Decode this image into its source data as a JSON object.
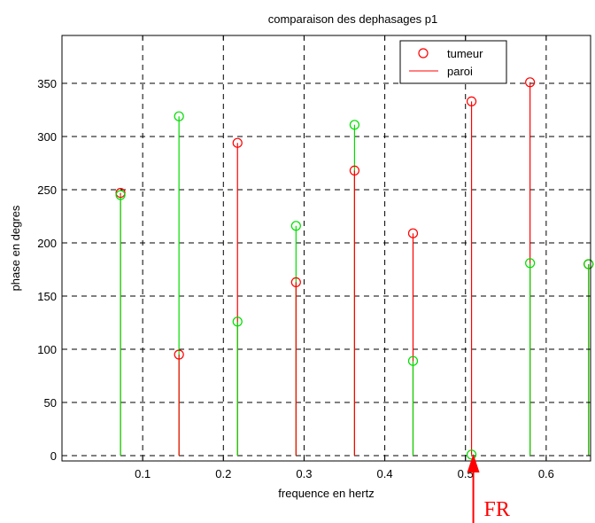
{
  "chart_data": {
    "type": "stem",
    "title": "comparaison des dephasages p1",
    "xlabel": "frequence en hertz",
    "ylabel": "phase en degres",
    "xlim": [
      0.0,
      0.655
    ],
    "ylim": [
      -5,
      395
    ],
    "xticks": [
      0.1,
      0.2,
      0.3,
      0.4,
      0.5,
      0.6
    ],
    "xtick_labels": [
      "0.1",
      "0.2",
      "0.3",
      "0.4",
      "0.5",
      "0.6"
    ],
    "yticks": [
      0,
      50,
      100,
      150,
      200,
      250,
      300,
      350
    ],
    "ytick_labels": [
      "0",
      "50",
      "100",
      "150",
      "200",
      "250",
      "300",
      "350"
    ],
    "grid": true,
    "legend_position": "top-right",
    "legend": [
      {
        "label": "tumeur",
        "marker": "circle",
        "color": "#ff0000"
      },
      {
        "label": "paroi",
        "marker": "line",
        "color": "#ff0000"
      }
    ],
    "series": [
      {
        "name": "tumeur",
        "color": "#ff0000",
        "x": [
          0.0725,
          0.145,
          0.2175,
          0.29,
          0.3625,
          0.435,
          0.5075,
          0.58,
          0.6525
        ],
        "y": [
          247,
          95,
          294,
          163,
          268,
          209,
          333,
          351,
          180
        ]
      },
      {
        "name": "paroi",
        "color": "#00dd00",
        "x": [
          0.0725,
          0.145,
          0.2175,
          0.29,
          0.3625,
          0.435,
          0.5075,
          0.58,
          0.6525
        ],
        "y": [
          245,
          319,
          126,
          216,
          311,
          89,
          1,
          181,
          180
        ]
      }
    ],
    "annotation": {
      "text": "FR",
      "x": 0.5075,
      "color": "#ff0000"
    }
  }
}
